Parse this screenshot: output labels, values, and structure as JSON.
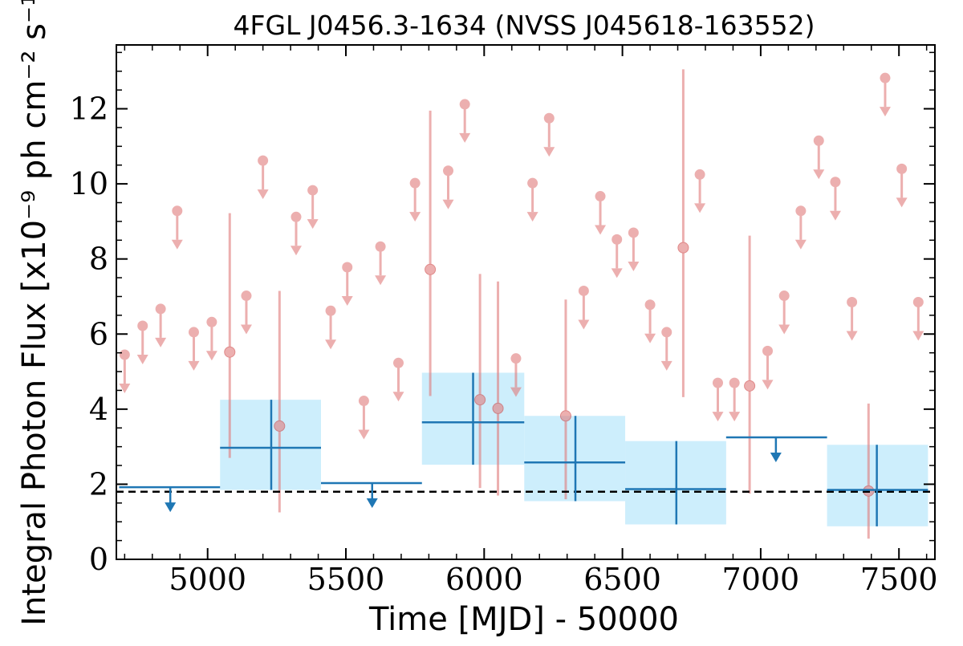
{
  "chart_data": {
    "type": "scatter",
    "title": "4FGL J0456.3-1634 (NVSS J045618-163552)",
    "xlabel": "Time [MJD] - 50000",
    "ylabel": "Integral Photon Flux [x10⁻⁹ ph cm⁻² s⁻¹]",
    "xlim": [
      4670,
      7630
    ],
    "ylim": [
      0,
      13.7
    ],
    "x_ticks": [
      5000,
      5500,
      6000,
      6500,
      7000,
      7500
    ],
    "y_ticks": [
      0,
      2,
      4,
      6,
      8,
      10,
      12
    ],
    "grid": false,
    "reference_level": 1.8,
    "colors": {
      "short_bins": "#e07b7b",
      "long_bins": "#1f77b4",
      "long_bins_band": "#cdeefc",
      "reference": "#000000"
    },
    "series": [
      {
        "kind": "short-bin",
        "detections": [
          {
            "x": 5080,
            "y": 5.52,
            "ylow": 2.7,
            "yhigh": 9.22
          },
          {
            "x": 5260,
            "y": 3.55,
            "ylow": 1.25,
            "yhigh": 7.15
          },
          {
            "x": 5805,
            "y": 7.72,
            "ylow": 4.35,
            "yhigh": 11.95
          },
          {
            "x": 5985,
            "y": 4.25,
            "ylow": 1.9,
            "yhigh": 7.6
          },
          {
            "x": 6050,
            "y": 4.02,
            "ylow": 1.7,
            "yhigh": 7.4
          },
          {
            "x": 6295,
            "y": 3.82,
            "ylow": 1.6,
            "yhigh": 6.92
          },
          {
            "x": 6720,
            "y": 8.3,
            "ylow": 4.32,
            "yhigh": 13.05
          },
          {
            "x": 6960,
            "y": 4.62,
            "ylow": 1.75,
            "yhigh": 8.62
          },
          {
            "x": 7390,
            "y": 1.82,
            "ylow": 0.55,
            "yhigh": 4.15
          }
        ],
        "upper_limits": [
          {
            "x": 4700,
            "y": 5.45
          },
          {
            "x": 4765,
            "y": 6.22
          },
          {
            "x": 4830,
            "y": 6.67
          },
          {
            "x": 4890,
            "y": 9.28
          },
          {
            "x": 4950,
            "y": 6.05
          },
          {
            "x": 5015,
            "y": 6.32
          },
          {
            "x": 5140,
            "y": 7.02
          },
          {
            "x": 5200,
            "y": 10.62
          },
          {
            "x": 5320,
            "y": 9.12
          },
          {
            "x": 5380,
            "y": 9.83
          },
          {
            "x": 5445,
            "y": 6.62
          },
          {
            "x": 5505,
            "y": 7.78
          },
          {
            "x": 5565,
            "y": 4.22
          },
          {
            "x": 5625,
            "y": 8.33
          },
          {
            "x": 5690,
            "y": 5.23
          },
          {
            "x": 5750,
            "y": 10.02
          },
          {
            "x": 5870,
            "y": 10.35
          },
          {
            "x": 5930,
            "y": 12.12
          },
          {
            "x": 6115,
            "y": 5.35
          },
          {
            "x": 6175,
            "y": 10.02
          },
          {
            "x": 6235,
            "y": 11.75
          },
          {
            "x": 6360,
            "y": 7.15
          },
          {
            "x": 6420,
            "y": 9.67
          },
          {
            "x": 6480,
            "y": 8.52
          },
          {
            "x": 6540,
            "y": 8.7
          },
          {
            "x": 6600,
            "y": 6.78
          },
          {
            "x": 6660,
            "y": 6.05
          },
          {
            "x": 6780,
            "y": 10.25
          },
          {
            "x": 6845,
            "y": 4.7
          },
          {
            "x": 6905,
            "y": 4.7
          },
          {
            "x": 7025,
            "y": 5.55
          },
          {
            "x": 7085,
            "y": 7.02
          },
          {
            "x": 7145,
            "y": 9.28
          },
          {
            "x": 7210,
            "y": 11.15
          },
          {
            "x": 7270,
            "y": 10.05
          },
          {
            "x": 7330,
            "y": 6.85
          },
          {
            "x": 7450,
            "y": 12.82
          },
          {
            "x": 7510,
            "y": 10.4
          },
          {
            "x": 7570,
            "y": 6.85
          }
        ]
      },
      {
        "kind": "long-bin",
        "detections": [
          {
            "x0": 5045,
            "x1": 5410,
            "y": 2.97,
            "ylow": 1.85,
            "yhigh": 4.25,
            "xc": 5230
          },
          {
            "x0": 5775,
            "x1": 6145,
            "y": 3.65,
            "ylow": 2.52,
            "yhigh": 4.97,
            "xc": 5960
          },
          {
            "x0": 6145,
            "x1": 6510,
            "y": 2.58,
            "ylow": 1.55,
            "yhigh": 3.82,
            "xc": 6330
          },
          {
            "x0": 6510,
            "x1": 6875,
            "y": 1.87,
            "ylow": 0.93,
            "yhigh": 3.15,
            "xc": 6695
          },
          {
            "x0": 7240,
            "x1": 7605,
            "y": 1.85,
            "ylow": 0.88,
            "yhigh": 3.05,
            "xc": 7420
          }
        ],
        "upper_limits": [
          {
            "x0": 4680,
            "x1": 5045,
            "y": 1.92,
            "xc": 4865
          },
          {
            "x0": 5410,
            "x1": 5775,
            "y": 2.03,
            "xc": 5595
          },
          {
            "x0": 6875,
            "x1": 7240,
            "y": 3.25,
            "xc": 7055
          }
        ]
      }
    ]
  }
}
